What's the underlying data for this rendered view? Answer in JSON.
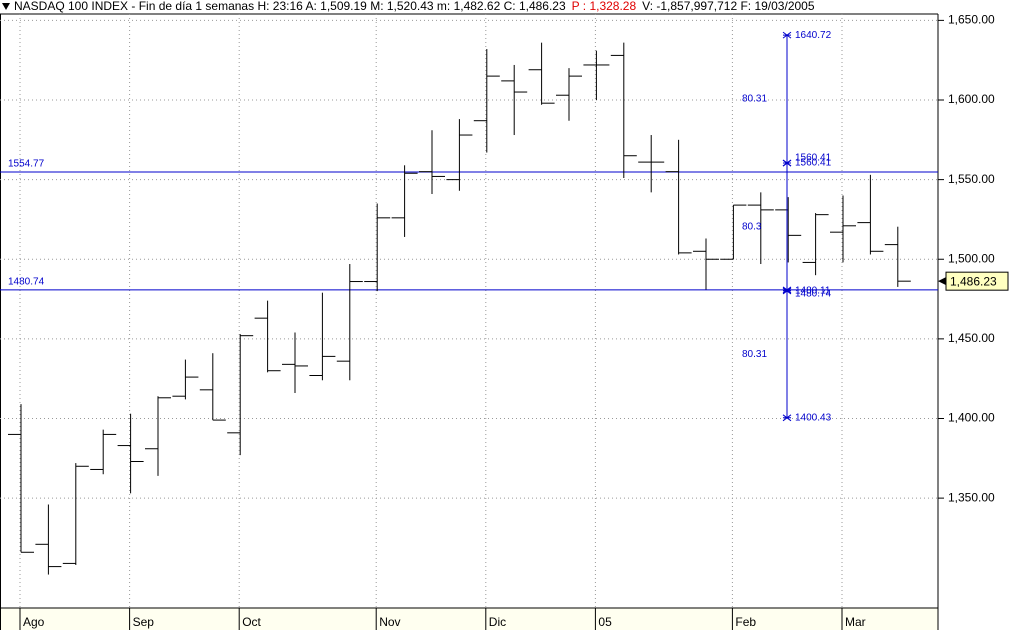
{
  "chart_data": {
    "type": "ohlc",
    "header": [
      {
        "text": "NASDAQ 100 INDEX - Fin de día 1 semanas  H: 23:16  A: 1,509.19  M: 1,520.43  m: 1,482.62  C: 1,486.23",
        "color": "#000000"
      },
      {
        "text": "P : 1,328.28",
        "color": "#e00000"
      },
      {
        "text": "V: -1,857,997,712  F: 19/03/2005",
        "color": "#000000"
      }
    ],
    "categories": [
      "Ago",
      null,
      null,
      null,
      "Sep",
      null,
      null,
      null,
      "Oct",
      null,
      null,
      null,
      null,
      "Nov",
      null,
      null,
      null,
      "Dic",
      null,
      null,
      null,
      "05",
      null,
      null,
      null,
      null,
      "Feb",
      null,
      null,
      null,
      "Mar",
      null,
      null
    ],
    "open": [
      1390,
      1321,
      1309,
      1368,
      1383,
      1381,
      1414,
      1418,
      1391,
      1463,
      1434,
      1427,
      1436,
      1486,
      1526,
      1555,
      1550,
      1587,
      1612,
      1619,
      1603,
      1622,
      1628,
      1561,
      1555,
      1505,
      1500,
      1534,
      1531,
      1498,
      1517,
      1523,
      1509.19
    ],
    "high": [
      1409,
      1346,
      1372,
      1393,
      1403,
      1414,
      1437,
      1441,
      1453,
      1474,
      1454,
      1479,
      1497,
      1535,
      1559,
      1581,
      1588,
      1632,
      1622,
      1636,
      1620,
      1631,
      1636,
      1578,
      1575,
      1513,
      1534,
      1542,
      1539,
      1529,
      1540,
      1553,
      1520.43
    ],
    "low": [
      1316,
      1302,
      1308,
      1365,
      1353,
      1364,
      1412,
      1399,
      1377,
      1429,
      1416,
      1424,
      1424,
      1480,
      1514,
      1541,
      1543,
      1567,
      1578,
      1597,
      1587,
      1600,
      1551,
      1542,
      1503,
      1481,
      1500,
      1497,
      1498,
      1490,
      1498,
      1503,
      1482.62
    ],
    "close": [
      1316,
      1307,
      1370,
      1390,
      1373,
      1413,
      1426,
      1399,
      1452,
      1430,
      1433,
      1439,
      1486,
      1526,
      1554,
      1552,
      1578,
      1615,
      1605,
      1598,
      1615,
      1622,
      1565,
      1561,
      1504,
      1500,
      1534,
      1531,
      1515,
      1528,
      1521,
      1505,
      1486.23
    ],
    "color": "#000000",
    "ylim": [
      1281,
      1654
    ],
    "yticks": [
      {
        "value": 1350,
        "label": "1,350.00"
      },
      {
        "value": 1400,
        "label": "1,400.00"
      },
      {
        "value": 1450,
        "label": "1,450.00"
      },
      {
        "value": 1500,
        "label": "1,500.00"
      },
      {
        "value": 1550,
        "label": "1,550.00"
      },
      {
        "value": 1600,
        "label": "1,600.00"
      },
      {
        "value": 1650,
        "label": "1,650.00"
      }
    ],
    "grid": true,
    "hlines": [
      1554.77,
      1480.74
    ],
    "measure_levels": [
      1640.72,
      1560.41,
      1560.41,
      1480.11,
      1480.74,
      1400.43
    ],
    "measure_differences": [
      80.31,
      80.3,
      80.31
    ],
    "annotation_color": "#0000cc",
    "last_price": {
      "value": 1486.23,
      "label": "1,486.23"
    }
  }
}
